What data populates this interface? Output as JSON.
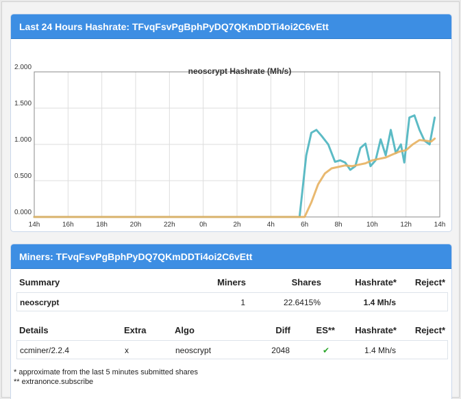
{
  "hashrate_panel": {
    "title": "Last 24 Hours Hashrate: TFvqFsvPgBphPyDQ7QKmDDTi4oi2C6vEtt"
  },
  "chart_data": {
    "type": "line",
    "title": "neoscrypt Hashrate (Mh/s)",
    "xlabel": "",
    "ylabel": "",
    "ylim": [
      0,
      2
    ],
    "xlim": [
      14,
      38
    ],
    "yticks": [
      "2.000",
      "1.500",
      "1.000",
      "0.500",
      "0.000"
    ],
    "ytick_values": [
      2,
      1.5,
      1,
      0.5,
      0
    ],
    "xticks": [
      "14h",
      "16h",
      "18h",
      "20h",
      "22h",
      "0h",
      "2h",
      "4h",
      "6h",
      "8h",
      "10h",
      "12h",
      "14h"
    ],
    "xtick_values": [
      14,
      16,
      18,
      20,
      22,
      24,
      26,
      28,
      30,
      32,
      34,
      36,
      38
    ],
    "grid": true,
    "legend": "none",
    "colors": {
      "series_1": "#4ab4bf",
      "series_2": "#e7b160",
      "grid": "#dddddd",
      "axis": "#888888"
    },
    "series": [
      {
        "color": "#4ab4bf",
        "x": [
          14,
          29.7,
          30.1,
          30.4,
          30.7,
          31.0,
          31.4,
          31.8,
          32.1,
          32.4,
          32.7,
          33.0,
          33.3,
          33.6,
          33.9,
          34.2,
          34.5,
          34.8,
          35.1,
          35.4,
          35.7,
          35.9,
          36.2,
          36.5,
          36.8,
          37.1,
          37.4,
          37.7
        ],
        "y": [
          0,
          0,
          0.85,
          1.16,
          1.2,
          1.12,
          1.0,
          0.76,
          0.78,
          0.75,
          0.65,
          0.7,
          0.95,
          1.01,
          0.7,
          0.78,
          1.07,
          0.85,
          1.2,
          0.88,
          1.0,
          0.75,
          1.37,
          1.4,
          1.2,
          1.05,
          1.0,
          1.37
        ]
      },
      {
        "color": "#e7b160",
        "x": [
          14,
          30.0,
          30.4,
          30.8,
          31.2,
          31.6,
          32.0,
          32.4,
          32.8,
          33.2,
          33.6,
          34.0,
          34.4,
          34.8,
          35.2,
          35.6,
          36.0,
          36.4,
          36.8,
          37.2,
          37.5,
          37.7
        ],
        "y": [
          0,
          0,
          0.2,
          0.45,
          0.6,
          0.67,
          0.69,
          0.71,
          0.7,
          0.72,
          0.74,
          0.78,
          0.8,
          0.82,
          0.86,
          0.9,
          0.92,
          1.0,
          1.06,
          1.05,
          1.04,
          1.08
        ]
      }
    ]
  },
  "miners_panel": {
    "title": "Miners: TFvqFsvPgBphPyDQ7QKmDDTi4oi2C6vEtt",
    "summary_headers": {
      "summary": "Summary",
      "miners": "Miners",
      "shares": "Shares",
      "hashrate": "Hashrate*",
      "reject": "Reject*"
    },
    "summary_row": {
      "algo": "neoscrypt",
      "miners": "1",
      "shares": "22.6415%",
      "hashrate": "1.4 Mh/s",
      "reject": ""
    },
    "details_headers": {
      "details": "Details",
      "extra": "Extra",
      "algo": "Algo",
      "diff": "Diff",
      "es": "ES**",
      "hashrate": "Hashrate*",
      "reject": "Reject*"
    },
    "details_row": {
      "details": "ccminer/2.2.4",
      "extra": "x",
      "algo": "neoscrypt",
      "diff": "2048",
      "es": "✔",
      "hashrate": "1.4 Mh/s",
      "reject": ""
    },
    "notes": [
      "* approximate from the last 5 minutes submitted shares",
      "** extranonce.subscribe"
    ]
  }
}
